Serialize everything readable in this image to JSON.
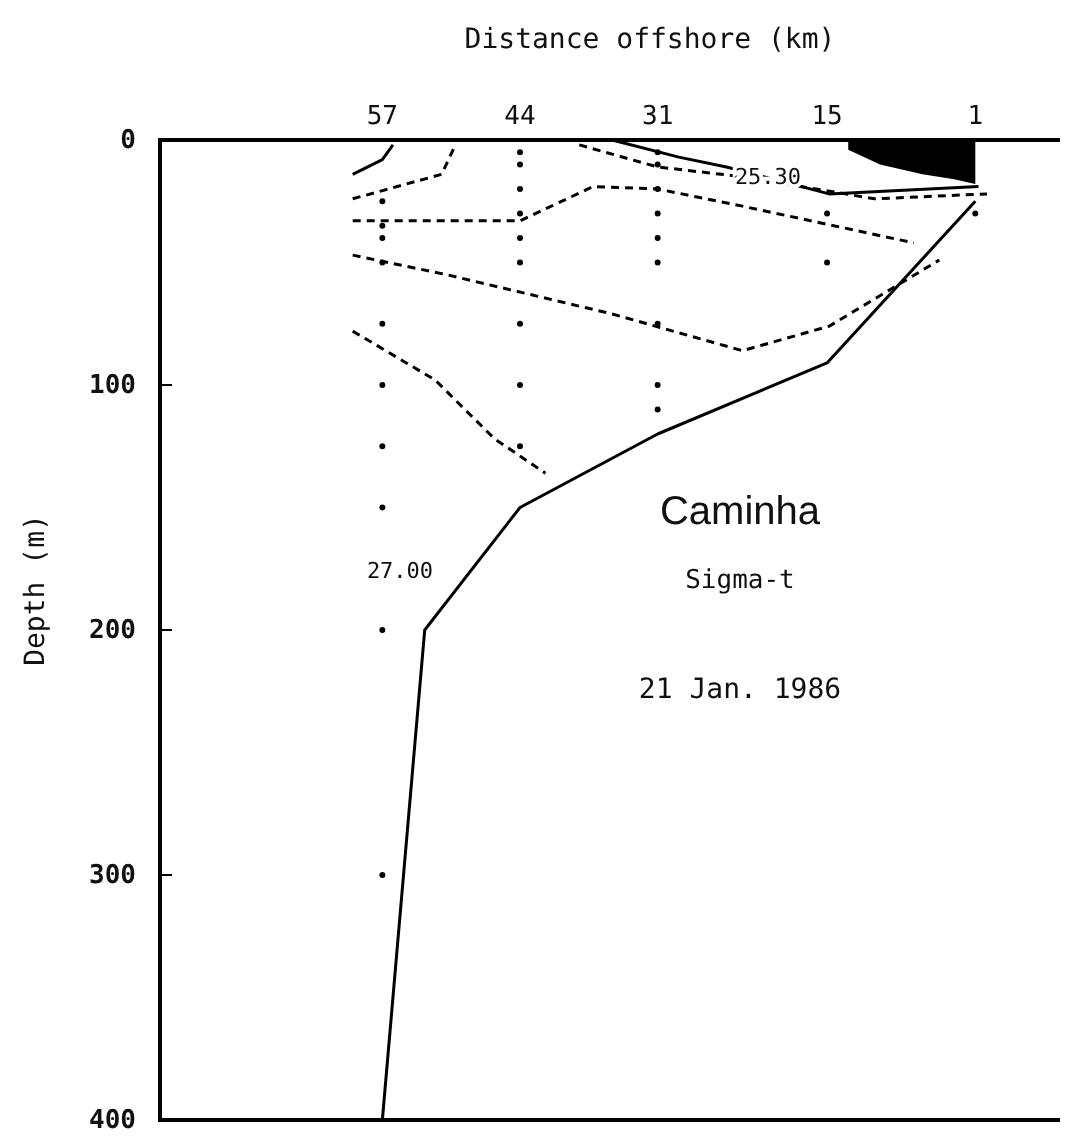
{
  "chart_data": {
    "type": "line",
    "title": "Caminha",
    "subtitle": "Sigma-t",
    "xlabel": "Distance offshore (km)",
    "ylabel": "Depth (m)",
    "xlim": [
      78,
      -7
    ],
    "xticks": [
      57,
      44,
      31,
      15,
      1
    ],
    "ylim": [
      400,
      0
    ],
    "yticks": [
      0,
      100,
      200,
      300,
      400
    ],
    "annotations": [
      "21 Jan. 1986",
      "27.00",
      "25.30"
    ],
    "grid": false,
    "series": [
      {
        "type": "area",
        "color": "#000000",
        "x": [
          13,
          10,
          6,
          3,
          1
        ],
        "values": [
          4,
          10,
          14,
          16,
          18
        ]
      },
      {
        "color": "#000000",
        "line_style": "solid",
        "x": [
          1,
          15,
          31,
          44,
          53,
          57
        ],
        "values": [
          25,
          91,
          120,
          150,
          200,
          400
        ]
      },
      {
        "type": "line",
        "color": "#000000",
        "line_style": "solid",
        "x": [
          59.8,
          57,
          56
        ],
        "values": [
          14,
          8,
          2
        ]
      },
      {
        "type": "line",
        "color": "#000000",
        "line_style": "solid",
        "x": [
          35.3,
          29,
          24.5,
          14.8,
          0.7
        ],
        "values": [
          0,
          7,
          11,
          22,
          19
        ]
      },
      {
        "type": "line",
        "color": "#000000",
        "line_style": "dashed",
        "x": [
          59.8,
          51.4,
          50.1
        ],
        "values": [
          24,
          14,
          2
        ]
      },
      {
        "type": "line",
        "color": "#000000",
        "line_style": "dashed",
        "x": [
          59.8,
          44,
          37.1,
          31,
          23,
          6.8
        ],
        "values": [
          33,
          33,
          19,
          20,
          27,
          42
        ]
      },
      {
        "type": "line",
        "color": "#000000",
        "line_style": "dashed",
        "x": [
          59.8,
          50.9,
          35.3,
          23,
          14.8,
          4.4
        ],
        "values": [
          47,
          55,
          71,
          86,
          76,
          49
        ]
      },
      {
        "type": "line",
        "color": "#000000",
        "line_style": "dashed",
        "x": [
          59.8,
          52,
          46.4,
          41.6
        ],
        "values": [
          78,
          98,
          122,
          136
        ]
      },
      {
        "type": "line",
        "color": "#000000",
        "line_style": "dashed",
        "x": [
          38.4,
          31,
          23,
          10.5,
          -0.1
        ],
        "values": [
          2,
          11,
          15,
          24,
          22
        ]
      },
      {
        "type": "scatter",
        "color": "#000000",
        "marker": "circle",
        "x": [
          57,
          57,
          57,
          57,
          57,
          57,
          57,
          57,
          57,
          57,
          44,
          44,
          44,
          44,
          44,
          44,
          44,
          44,
          44,
          31,
          31,
          31,
          31,
          31,
          31,
          31,
          31,
          31,
          15,
          15,
          1
        ],
        "values": [
          25,
          35,
          40,
          50,
          75,
          100,
          125,
          150,
          200,
          300,
          5,
          10,
          20,
          30,
          40,
          50,
          75,
          100,
          125,
          5,
          10,
          20,
          30,
          40,
          50,
          75,
          100,
          110,
          30,
          50,
          30
        ]
      }
    ]
  }
}
